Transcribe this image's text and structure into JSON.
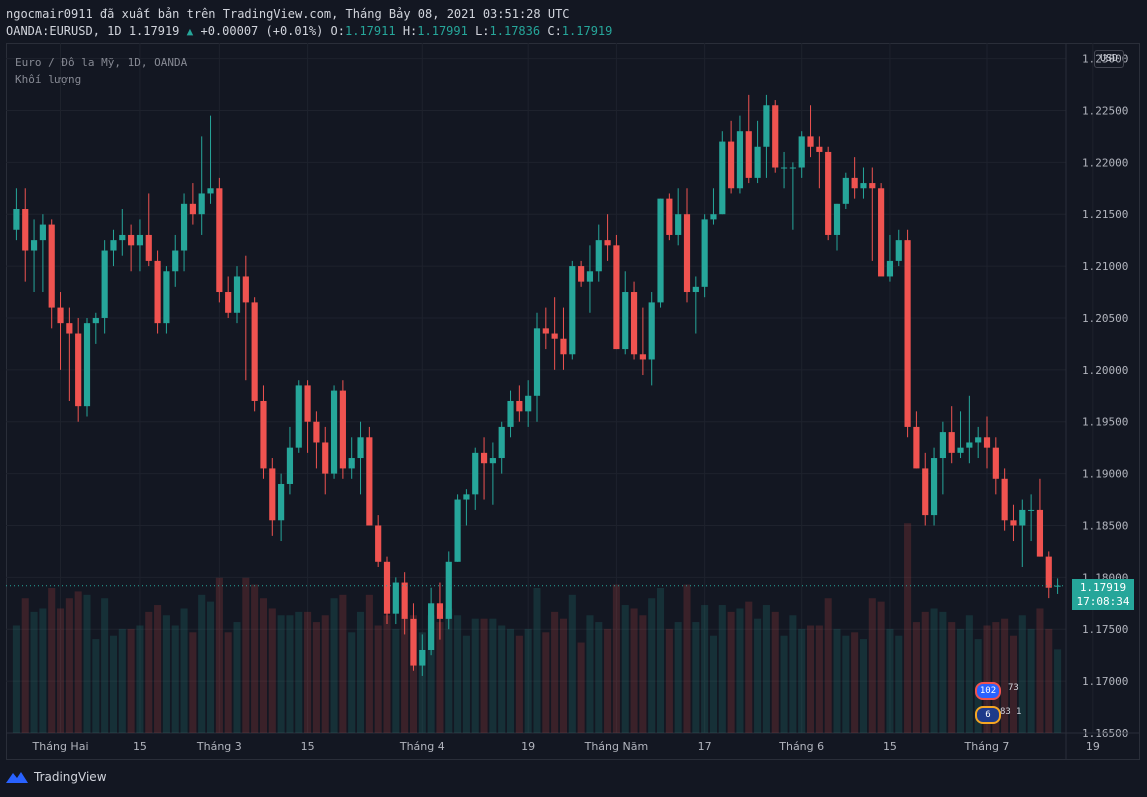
{
  "header": {
    "line1": "ngocmair0911 đã xuất bản trên TradingView.com, Tháng Bảy 08, 2021 03:51:28 UTC",
    "symbol": "OANDA:EURUSD, 1D 1.17919",
    "change": "+0.00007 (+0.01%)",
    "o_label": "O:",
    "o_value": "1.17911",
    "h_label": "H:",
    "h_value": "1.17991",
    "l_label": "L:",
    "l_value": "1.17836",
    "c_label": "C:",
    "c_value": "1.17919"
  },
  "legend": {
    "series": "Euro / Đô la Mỹ, 1D, OANDA",
    "volume": "Khối lượng"
  },
  "currency_button": "USD",
  "last_price": {
    "price": "1.17919",
    "countdown": "17:08:34"
  },
  "events": {
    "us_count": "102",
    "us_count2": "73",
    "eu_count": "6",
    "eu_count2": "83",
    "eu_count3": "1"
  },
  "footer": {
    "brand": "TradingView"
  },
  "colors": {
    "up": "#26a69a",
    "down": "#ef5350",
    "background": "#131722",
    "grid": "#1e222d",
    "text": "#b2b5be"
  },
  "chart_data": {
    "type": "candlestick",
    "y_ticks": [
      "1.23000",
      "1.22500",
      "1.22000",
      "1.21500",
      "1.21000",
      "1.20500",
      "1.20000",
      "1.19500",
      "1.19000",
      "1.18500",
      "1.18000",
      "1.17500",
      "1.17000",
      "1.16500"
    ],
    "ylim": [
      1.165,
      1.2315
    ],
    "x_ticks": [
      {
        "label": "Tháng Hai",
        "index": 5
      },
      {
        "label": "15",
        "index": 14
      },
      {
        "label": "Tháng 3",
        "index": 23
      },
      {
        "label": "15",
        "index": 33
      },
      {
        "label": "Tháng 4",
        "index": 46
      },
      {
        "label": "19",
        "index": 58
      },
      {
        "label": "Tháng Năm",
        "index": 68
      },
      {
        "label": "17",
        "index": 78
      },
      {
        "label": "Tháng 6",
        "index": 89
      },
      {
        "label": "15",
        "index": 99
      },
      {
        "label": "Tháng 7",
        "index": 110
      },
      {
        "label": "19",
        "index": 122
      }
    ],
    "candles": [
      [
        1.2135,
        1.2175,
        1.2125,
        1.2155
      ],
      [
        1.2155,
        1.2175,
        1.2085,
        1.2115
      ],
      [
        1.2115,
        1.2145,
        1.2075,
        1.2125
      ],
      [
        1.2125,
        1.215,
        1.2075,
        1.214
      ],
      [
        1.214,
        1.2145,
        1.204,
        1.206
      ],
      [
        1.206,
        1.2075,
        1.2,
        1.2045
      ],
      [
        1.2045,
        1.206,
        1.197,
        1.2035
      ],
      [
        1.2035,
        1.205,
        1.195,
        1.1965
      ],
      [
        1.1965,
        1.205,
        1.1955,
        1.2045
      ],
      [
        1.2045,
        1.2055,
        1.2025,
        1.205
      ],
      [
        1.205,
        1.2125,
        1.2035,
        1.2115
      ],
      [
        1.2115,
        1.2135,
        1.21,
        1.2125
      ],
      [
        1.2125,
        1.2155,
        1.211,
        1.213
      ],
      [
        1.213,
        1.214,
        1.2095,
        1.212
      ],
      [
        1.212,
        1.2145,
        1.2095,
        1.213
      ],
      [
        1.213,
        1.217,
        1.21,
        1.2105
      ],
      [
        1.2105,
        1.2115,
        1.2035,
        1.2045
      ],
      [
        1.2045,
        1.21,
        1.2035,
        1.2095
      ],
      [
        1.2095,
        1.213,
        1.208,
        1.2115
      ],
      [
        1.2115,
        1.217,
        1.2095,
        1.216
      ],
      [
        1.216,
        1.218,
        1.214,
        1.215
      ],
      [
        1.215,
        1.2225,
        1.213,
        1.217
      ],
      [
        1.217,
        1.2245,
        1.216,
        1.2175
      ],
      [
        1.2175,
        1.2185,
        1.2065,
        1.2075
      ],
      [
        1.2075,
        1.209,
        1.205,
        1.2055
      ],
      [
        1.2055,
        1.21,
        1.2045,
        1.209
      ],
      [
        1.209,
        1.211,
        1.199,
        1.2065
      ],
      [
        1.2065,
        1.207,
        1.196,
        1.197
      ],
      [
        1.197,
        1.1985,
        1.1895,
        1.1905
      ],
      [
        1.1905,
        1.1915,
        1.184,
        1.1855
      ],
      [
        1.1855,
        1.19,
        1.1835,
        1.189
      ],
      [
        1.189,
        1.1945,
        1.188,
        1.1925
      ],
      [
        1.1925,
        1.199,
        1.192,
        1.1985
      ],
      [
        1.1985,
        1.199,
        1.192,
        1.195
      ],
      [
        1.195,
        1.196,
        1.1905,
        1.193
      ],
      [
        1.193,
        1.1945,
        1.188,
        1.19
      ],
      [
        1.19,
        1.1985,
        1.1895,
        1.198
      ],
      [
        1.198,
        1.199,
        1.1895,
        1.1905
      ],
      [
        1.1905,
        1.1935,
        1.1895,
        1.1915
      ],
      [
        1.1915,
        1.195,
        1.188,
        1.1935
      ],
      [
        1.1935,
        1.1945,
        1.185,
        1.185
      ],
      [
        1.185,
        1.186,
        1.181,
        1.1815
      ],
      [
        1.1815,
        1.182,
        1.1755,
        1.1765
      ],
      [
        1.1765,
        1.18,
        1.1755,
        1.1795
      ],
      [
        1.1795,
        1.1805,
        1.1745,
        1.176
      ],
      [
        1.176,
        1.1775,
        1.171,
        1.1715
      ],
      [
        1.1715,
        1.1745,
        1.1705,
        1.173
      ],
      [
        1.173,
        1.179,
        1.1725,
        1.1775
      ],
      [
        1.1775,
        1.1795,
        1.174,
        1.176
      ],
      [
        1.176,
        1.1825,
        1.175,
        1.1815
      ],
      [
        1.1815,
        1.188,
        1.1815,
        1.1875
      ],
      [
        1.1875,
        1.1885,
        1.185,
        1.188
      ],
      [
        1.188,
        1.1925,
        1.1865,
        1.192
      ],
      [
        1.192,
        1.1935,
        1.1875,
        1.191
      ],
      [
        1.191,
        1.193,
        1.187,
        1.1915
      ],
      [
        1.1915,
        1.195,
        1.19,
        1.1945
      ],
      [
        1.1945,
        1.198,
        1.1935,
        1.197
      ],
      [
        1.197,
        1.1985,
        1.195,
        1.196
      ],
      [
        1.196,
        1.199,
        1.1945,
        1.1975
      ],
      [
        1.1975,
        1.2055,
        1.195,
        1.204
      ],
      [
        1.204,
        1.206,
        1.202,
        1.2035
      ],
      [
        1.2035,
        1.207,
        1.2,
        1.203
      ],
      [
        1.203,
        1.206,
        1.2,
        1.2015
      ],
      [
        1.2015,
        1.2105,
        1.201,
        1.21
      ],
      [
        1.21,
        1.2105,
        1.208,
        1.2085
      ],
      [
        1.2085,
        1.212,
        1.2055,
        1.2095
      ],
      [
        1.2095,
        1.214,
        1.2085,
        1.2125
      ],
      [
        1.2125,
        1.215,
        1.2105,
        1.212
      ],
      [
        1.212,
        1.213,
        1.202,
        1.202
      ],
      [
        1.202,
        1.2095,
        1.2015,
        1.2075
      ],
      [
        1.2075,
        1.2085,
        1.201,
        1.2015
      ],
      [
        1.2015,
        1.206,
        1.1995,
        1.201
      ],
      [
        1.201,
        1.2075,
        1.1985,
        1.2065
      ],
      [
        1.2065,
        1.2165,
        1.206,
        1.2165
      ],
      [
        1.2165,
        1.217,
        1.2125,
        1.213
      ],
      [
        1.213,
        1.2175,
        1.212,
        1.215
      ],
      [
        1.215,
        1.2175,
        1.2065,
        1.2075
      ],
      [
        1.2075,
        1.209,
        1.2035,
        1.208
      ],
      [
        1.208,
        1.215,
        1.207,
        1.2145
      ],
      [
        1.2145,
        1.2175,
        1.214,
        1.215
      ],
      [
        1.215,
        1.223,
        1.215,
        1.222
      ],
      [
        1.222,
        1.224,
        1.217,
        1.2175
      ],
      [
        1.2175,
        1.2245,
        1.217,
        1.223
      ],
      [
        1.223,
        1.2265,
        1.218,
        1.2185
      ],
      [
        1.2185,
        1.224,
        1.218,
        1.2215
      ],
      [
        1.2215,
        1.2265,
        1.2185,
        1.2255
      ],
      [
        1.2255,
        1.226,
        1.219,
        1.2195
      ],
      [
        1.2195,
        1.221,
        1.2175,
        1.2195
      ],
      [
        1.2195,
        1.22,
        1.2135,
        1.2195
      ],
      [
        1.2195,
        1.223,
        1.2185,
        1.2225
      ],
      [
        1.2225,
        1.2255,
        1.2205,
        1.2215
      ],
      [
        1.2215,
        1.2225,
        1.2175,
        1.221
      ],
      [
        1.221,
        1.2215,
        1.2125,
        1.213
      ],
      [
        1.213,
        1.216,
        1.2115,
        1.216
      ],
      [
        1.216,
        1.219,
        1.2155,
        1.2185
      ],
      [
        1.2185,
        1.2205,
        1.2165,
        1.2175
      ],
      [
        1.2175,
        1.2195,
        1.2165,
        1.218
      ],
      [
        1.218,
        1.2195,
        1.2105,
        1.2175
      ],
      [
        1.2175,
        1.218,
        1.2095,
        1.209
      ],
      [
        1.209,
        1.213,
        1.2085,
        1.2105
      ],
      [
        1.2105,
        1.2135,
        1.21,
        1.2125
      ],
      [
        1.2125,
        1.2135,
        1.1935,
        1.1945
      ],
      [
        1.1945,
        1.196,
        1.1905,
        1.1905
      ],
      [
        1.1905,
        1.192,
        1.185,
        1.186
      ],
      [
        1.186,
        1.1925,
        1.185,
        1.1915
      ],
      [
        1.1915,
        1.195,
        1.188,
        1.194
      ],
      [
        1.194,
        1.1965,
        1.191,
        1.192
      ],
      [
        1.192,
        1.196,
        1.1915,
        1.1925
      ],
      [
        1.1925,
        1.1975,
        1.191,
        1.193
      ],
      [
        1.193,
        1.1945,
        1.1915,
        1.1935
      ],
      [
        1.1935,
        1.1955,
        1.1905,
        1.1925
      ],
      [
        1.1925,
        1.1935,
        1.188,
        1.1895
      ],
      [
        1.1895,
        1.1905,
        1.1845,
        1.1855
      ],
      [
        1.1855,
        1.187,
        1.1835,
        1.185
      ],
      [
        1.185,
        1.1875,
        1.181,
        1.1865
      ],
      [
        1.1865,
        1.188,
        1.1835,
        1.1865
      ],
      [
        1.1865,
        1.1895,
        1.182,
        1.182
      ],
      [
        1.182,
        1.1825,
        1.178,
        1.179
      ],
      [
        1.1791,
        1.1799,
        1.1784,
        1.1792
      ]
    ],
    "volume_max_ratio": 0.38
  }
}
